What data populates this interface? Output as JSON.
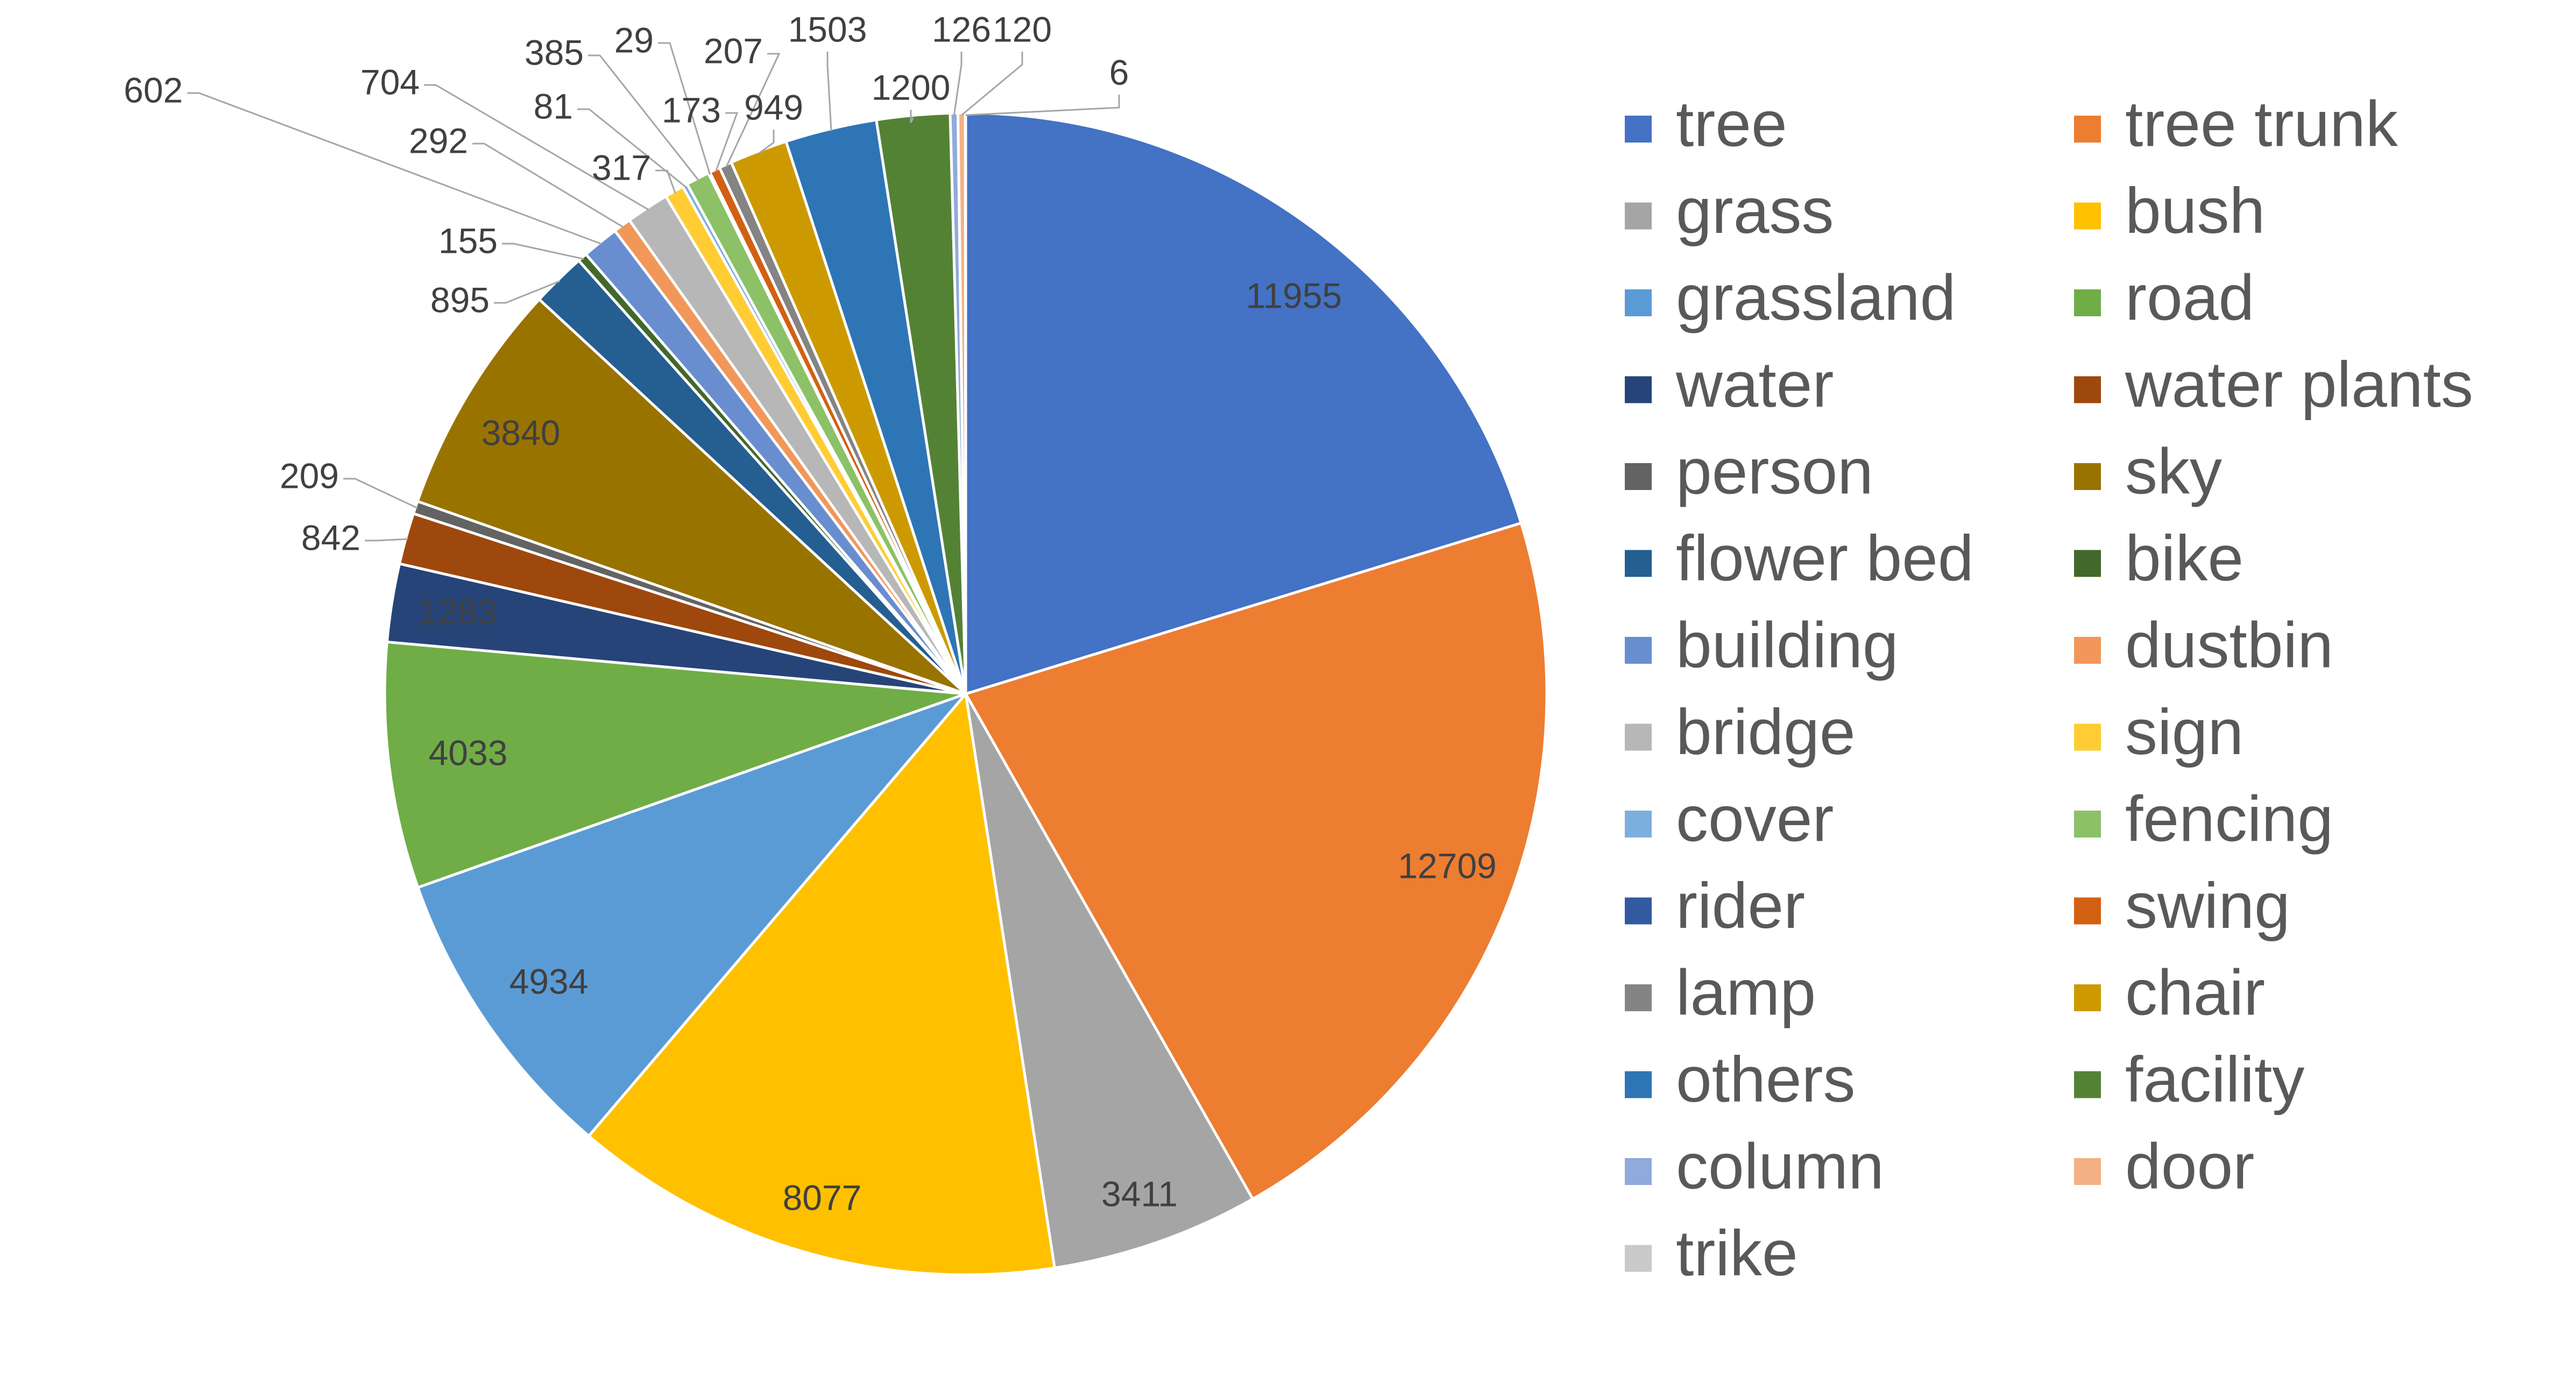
{
  "chart_data": {
    "type": "pie",
    "title": "",
    "legend_position": "right",
    "slices": [
      {
        "label": "tree",
        "value": 11955,
        "color": "#4472C4"
      },
      {
        "label": "tree trunk",
        "value": 12709,
        "color": "#ED7D31"
      },
      {
        "label": "grass",
        "value": 3411,
        "color": "#A5A5A5"
      },
      {
        "label": "bush",
        "value": 8077,
        "color": "#FFC000"
      },
      {
        "label": "grassland",
        "value": 4934,
        "color": "#5B9BD5"
      },
      {
        "label": "road",
        "value": 4033,
        "color": "#70AD47"
      },
      {
        "label": "water",
        "value": 1283,
        "color": "#264478"
      },
      {
        "label": "water plants",
        "value": 842,
        "color": "#9E480E"
      },
      {
        "label": "person",
        "value": 209,
        "color": "#636363"
      },
      {
        "label": "sky",
        "value": 3840,
        "color": "#997300"
      },
      {
        "label": "flower bed",
        "value": 895,
        "color": "#255E91"
      },
      {
        "label": "bike",
        "value": 155,
        "color": "#43682B"
      },
      {
        "label": "building",
        "value": 602,
        "color": "#698ED0"
      },
      {
        "label": "dustbin",
        "value": 292,
        "color": "#F1975A"
      },
      {
        "label": "bridge",
        "value": 704,
        "color": "#B7B7B7"
      },
      {
        "label": "sign",
        "value": 317,
        "color": "#FFCD33"
      },
      {
        "label": "cover",
        "value": 81,
        "color": "#7CAFDD"
      },
      {
        "label": "fencing",
        "value": 385,
        "color": "#8CC168"
      },
      {
        "label": "rider",
        "value": 29,
        "color": "#335AA1"
      },
      {
        "label": "swing",
        "value": 173,
        "color": "#D26012"
      },
      {
        "label": "lamp",
        "value": 207,
        "color": "#848484"
      },
      {
        "label": "chair",
        "value": 949,
        "color": "#CC9A00"
      },
      {
        "label": "others",
        "value": 1503,
        "color": "#2E75B6"
      },
      {
        "label": "facility",
        "value": 1200,
        "color": "#548235"
      },
      {
        "label": "column",
        "value": 126,
        "color": "#8FAADC"
      },
      {
        "label": "door",
        "value": 120,
        "color": "#F4B183"
      },
      {
        "label": "trike",
        "value": 6,
        "color": "#C9C9C9"
      }
    ]
  }
}
